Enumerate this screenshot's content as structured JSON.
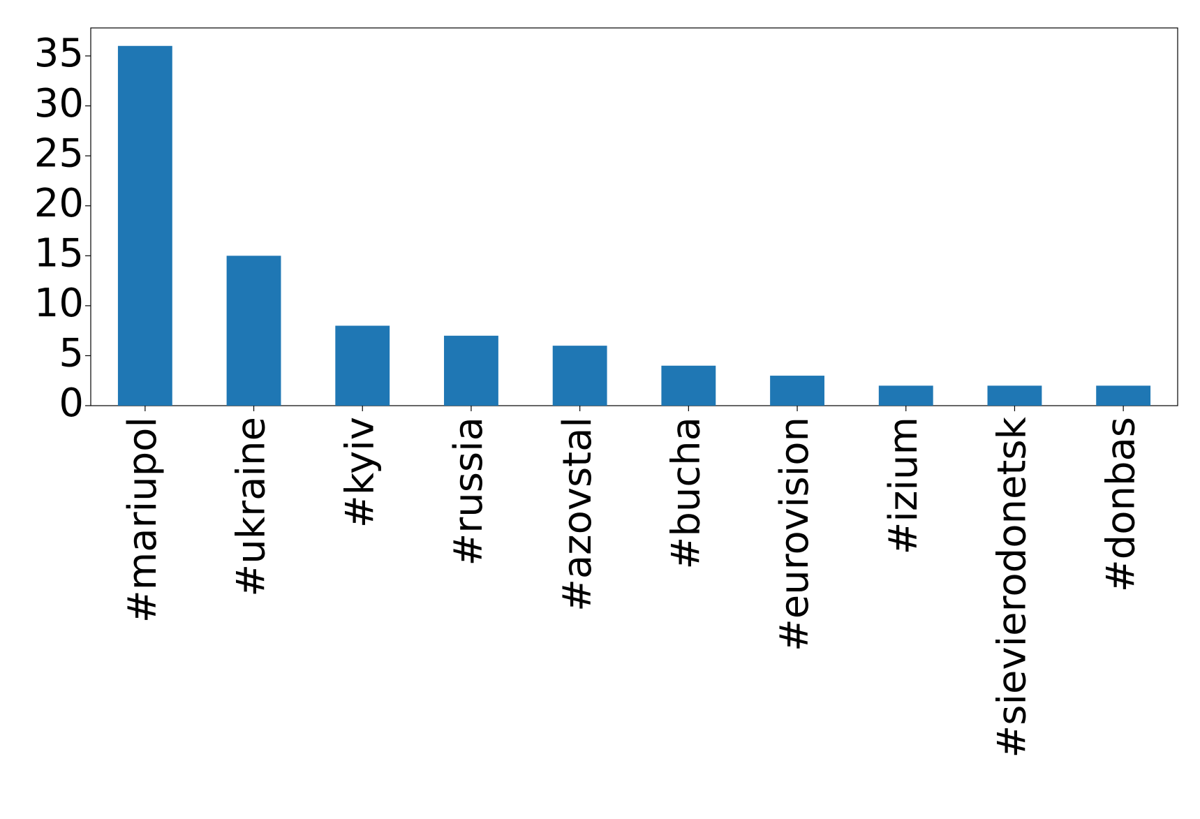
{
  "chart_data": {
    "type": "bar",
    "categories": [
      "#mariupol",
      "#ukraine",
      "#kyiv",
      "#russia",
      "#azovstal",
      "#bucha",
      "#eurovision",
      "#izium",
      "#sievierodonetsk",
      "#donbas"
    ],
    "values": [
      36,
      15,
      8,
      7,
      6,
      4,
      3,
      2,
      2,
      2
    ],
    "color": "#1f77b4",
    "ylim": [
      0,
      37.8
    ],
    "yticks": [
      0,
      5,
      10,
      15,
      20,
      25,
      30,
      35
    ],
    "grid": false
  }
}
